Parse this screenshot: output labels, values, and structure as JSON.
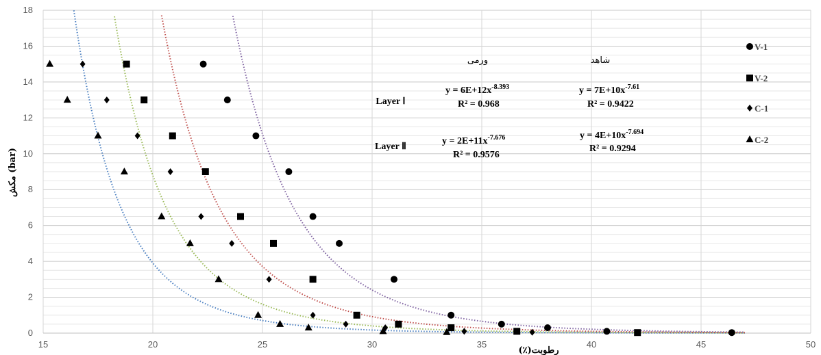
{
  "chart_data": {
    "type": "scatter",
    "title": "",
    "xlabel": "رطوبت(٪)",
    "ylabel": "مکش (bar)",
    "xlim": [
      15,
      50
    ],
    "ylim": [
      0,
      18
    ],
    "x_ticks": [
      15,
      20,
      25,
      30,
      35,
      40,
      45,
      50
    ],
    "y_ticks": [
      0,
      2,
      4,
      6,
      8,
      10,
      12,
      14,
      16,
      18
    ],
    "grid": true,
    "legend_position": "right",
    "series": [
      {
        "name": "V-1",
        "marker": "circle",
        "color": "#000000",
        "points": [
          [
            22.3,
            15
          ],
          [
            23.4,
            13
          ],
          [
            24.7,
            11
          ],
          [
            26.2,
            9
          ],
          [
            27.3,
            6.5
          ],
          [
            28.5,
            5
          ],
          [
            31,
            3
          ],
          [
            33.6,
            1
          ],
          [
            35.9,
            0.5
          ],
          [
            38,
            0.3
          ],
          [
            40.7,
            0.1
          ],
          [
            46.4,
            0.03
          ]
        ]
      },
      {
        "name": "V-2",
        "marker": "square",
        "color": "#000000",
        "points": [
          [
            18.8,
            15
          ],
          [
            19.6,
            13
          ],
          [
            20.9,
            11
          ],
          [
            22.4,
            9
          ],
          [
            24,
            6.5
          ],
          [
            25.5,
            5
          ],
          [
            27.3,
            3
          ],
          [
            29.3,
            1
          ],
          [
            31.2,
            0.5
          ],
          [
            33.6,
            0.3
          ],
          [
            36.6,
            0.1
          ],
          [
            42.1,
            0.03
          ]
        ]
      },
      {
        "name": "C-1",
        "marker": "diamond",
        "color": "#000000",
        "points": [
          [
            16.8,
            15
          ],
          [
            17.9,
            13
          ],
          [
            19.3,
            11
          ],
          [
            20.8,
            9
          ],
          [
            22.2,
            6.5
          ],
          [
            23.6,
            5
          ],
          [
            25.3,
            3
          ],
          [
            27.3,
            1
          ],
          [
            28.8,
            0.5
          ],
          [
            30.6,
            0.3
          ],
          [
            34.2,
            0.1
          ],
          [
            37.3,
            0.05
          ]
        ]
      },
      {
        "name": "C-2",
        "marker": "triangle",
        "color": "#000000",
        "points": [
          [
            15.3,
            15
          ],
          [
            16.1,
            13
          ],
          [
            17.5,
            11
          ],
          [
            18.7,
            9
          ],
          [
            20.4,
            6.5
          ],
          [
            21.7,
            5
          ],
          [
            23,
            3
          ],
          [
            24.8,
            1
          ],
          [
            25.8,
            0.5
          ],
          [
            27.1,
            0.3
          ],
          [
            30.5,
            0.1
          ],
          [
            33.4,
            0.05
          ]
        ]
      }
    ],
    "trendlines": [
      {
        "name": "V-1 power trend",
        "color": "#4a7fc1",
        "a": 40000000000.0,
        "b": -7.694
      },
      {
        "name": "V-2 power trend",
        "color": "#c0504d",
        "a": 200000000000.0,
        "b": -7.676
      },
      {
        "name": "C-1 power trend",
        "color": "#9bbb59",
        "a": 70000000000.0,
        "b": -7.61
      },
      {
        "name": "C-2 power trend",
        "color": "#8064a2",
        "a": 6000000000000.0,
        "b": -8.393
      }
    ],
    "annotations": [
      {
        "id": "vermi",
        "text": "ورمی"
      },
      {
        "id": "control",
        "text": "شاهد"
      },
      {
        "id": "layer1",
        "text": "Layer Ⅰ"
      },
      {
        "id": "layer2",
        "text": "Layer Ⅱ"
      },
      {
        "id": "eq_vermi_1",
        "text": "y = 6E+12x",
        "exp": "-8.393"
      },
      {
        "id": "r2_vermi_1",
        "text": "R² = 0.968"
      },
      {
        "id": "eq_control_1",
        "text": "y = 7E+10x",
        "exp": "-7.61"
      },
      {
        "id": "r2_control_1",
        "text": "R² = 0.9422"
      },
      {
        "id": "eq_vermi_2",
        "text": "y = 2E+11x",
        "exp": "-7.676"
      },
      {
        "id": "r2_vermi_2",
        "text": "R² = 0.9576"
      },
      {
        "id": "eq_control_2",
        "text": "y = 4E+10x",
        "exp": "-7.694"
      },
      {
        "id": "r2_control_2",
        "text": "R² = 0.9294"
      }
    ]
  }
}
